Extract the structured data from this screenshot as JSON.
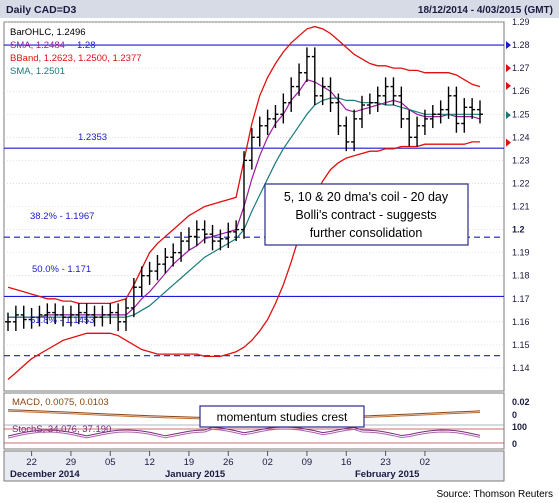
{
  "header": {
    "title": "Daily CAD=D3",
    "date_range": "18/12/2014 - 4/03/2015 (GMT)"
  },
  "legend": {
    "line1": "BarOHLC, 1.2496",
    "line2": "SMA, 1.2484",
    "line2b": "1.28",
    "line3": "BBand, 1.2623, 1.2500, 1.2377",
    "line4": "SMA, 1.2501"
  },
  "levels": {
    "support_label": "1.2353",
    "fib382": "38.2% - 1.1967",
    "fib50": "50.0% - 1.171",
    "fib618": "61.8% - 1.1453"
  },
  "annotations": {
    "main": [
      "5, 10 & 20 dma's coil - 20 day",
      "Bolli's contract - suggests",
      "further consolidation"
    ],
    "momentum": "momentum studies crest"
  },
  "indicators": {
    "macd": "MACD, 0.0075, 0.0103",
    "stoch": "StochS, 34.076, 37.190"
  },
  "x_axis": {
    "ticks": [
      "22",
      "29",
      "05",
      "12",
      "19",
      "26",
      "02",
      "09",
      "16",
      "23",
      "02"
    ],
    "months": [
      "December 2014",
      "January 2015",
      "February 2015"
    ]
  },
  "source": "Source: Thomson Reuters",
  "colors": {
    "bars": "#000000",
    "sma_fast": "#9c1a9c",
    "bband": "#e01010",
    "sma_slow": "#1a7a7a",
    "level_lines": "#1a1ad0",
    "macd": "#8b4513",
    "stoch": "#7a2a7a"
  },
  "chart_data": {
    "type": "line",
    "title": "Daily CAD=D3",
    "ylim": [
      1.13,
      1.29
    ],
    "y_ticks": [
      1.14,
      1.15,
      1.16,
      1.17,
      1.18,
      1.19,
      1.2,
      1.21,
      1.22,
      1.23,
      1.24,
      1.25,
      1.26,
      1.27,
      1.28,
      1.29
    ],
    "horizontal_levels": [
      1.2353,
      1.1967,
      1.171,
      1.1453,
      1.28
    ],
    "ohlc_close": [
      1.16,
      1.163,
      1.161,
      1.162,
      1.163,
      1.164,
      1.163,
      1.162,
      1.163,
      1.164,
      1.163,
      1.162,
      1.163,
      1.164,
      1.16,
      1.166,
      1.175,
      1.18,
      1.182,
      1.185,
      1.188,
      1.19,
      1.195,
      1.197,
      1.2,
      1.198,
      1.195,
      1.196,
      1.199,
      1.2,
      1.23,
      1.24,
      1.245,
      1.248,
      1.25,
      1.255,
      1.262,
      1.268,
      1.275,
      1.258,
      1.262,
      1.255,
      1.245,
      1.238,
      1.248,
      1.254,
      1.255,
      1.258,
      1.262,
      1.258,
      1.248,
      1.24,
      1.245,
      1.248,
      1.25,
      1.252,
      1.258,
      1.246,
      1.253,
      1.252,
      1.25
    ],
    "series": [
      {
        "name": "SMA",
        "values": [
          1.162,
          1.162,
          1.162,
          1.162,
          1.162,
          1.163,
          1.163,
          1.163,
          1.163,
          1.163,
          1.163,
          1.163,
          1.163,
          1.163,
          1.163,
          1.163,
          1.166,
          1.17,
          1.173,
          1.177,
          1.181,
          1.185,
          1.188,
          1.191,
          1.193,
          1.196,
          1.197,
          1.198,
          1.199,
          1.2,
          1.21,
          1.222,
          1.232,
          1.24,
          1.246,
          1.25,
          1.256,
          1.26,
          1.265,
          1.264,
          1.262,
          1.26,
          1.256,
          1.252,
          1.251,
          1.252,
          1.253,
          1.254,
          1.255,
          1.256,
          1.255,
          1.252,
          1.25,
          1.249,
          1.249,
          1.249,
          1.25,
          1.249,
          1.249,
          1.249,
          1.248
        ]
      },
      {
        "name": "SMA",
        "values": [
          1.162,
          1.162,
          1.162,
          1.162,
          1.162,
          1.162,
          1.162,
          1.162,
          1.162,
          1.162,
          1.162,
          1.162,
          1.162,
          1.162,
          1.162,
          1.162,
          1.163,
          1.165,
          1.167,
          1.17,
          1.173,
          1.176,
          1.179,
          1.182,
          1.185,
          1.188,
          1.19,
          1.192,
          1.194,
          1.196,
          1.2,
          1.208,
          1.215,
          1.222,
          1.229,
          1.235,
          1.24,
          1.245,
          1.25,
          1.254,
          1.256,
          1.257,
          1.257,
          1.256,
          1.256,
          1.255,
          1.255,
          1.255,
          1.254,
          1.254,
          1.253,
          1.252,
          1.251,
          1.25,
          1.25,
          1.25,
          1.25,
          1.25,
          1.25,
          1.25,
          1.25
        ]
      },
      {
        "name": "BBand",
        "values": [
          1.175,
          1.174,
          1.173,
          1.172,
          1.171,
          1.17,
          1.17,
          1.169,
          1.169,
          1.168,
          1.168,
          1.168,
          1.168,
          1.168,
          1.169,
          1.17,
          1.176,
          1.183,
          1.19,
          1.194,
          1.197,
          1.2,
          1.203,
          1.206,
          1.208,
          1.21,
          1.211,
          1.212,
          1.213,
          1.214,
          1.23,
          1.246,
          1.258,
          1.266,
          1.272,
          1.277,
          1.281,
          1.284,
          1.287,
          1.288,
          1.287,
          1.285,
          1.282,
          1.279,
          1.276,
          1.274,
          1.272,
          1.271,
          1.271,
          1.27,
          1.27,
          1.269,
          1.269,
          1.268,
          1.268,
          1.268,
          1.268,
          1.267,
          1.265,
          1.263,
          1.262
        ]
      },
      {
        "name": "BBand",
        "values": [
          1.135,
          1.138,
          1.141,
          1.144,
          1.146,
          1.148,
          1.15,
          1.152,
          1.153,
          1.154,
          1.155,
          1.155,
          1.155,
          1.155,
          1.154,
          1.152,
          1.15,
          1.148,
          1.147,
          1.146,
          1.146,
          1.146,
          1.146,
          1.146,
          1.146,
          1.145,
          1.145,
          1.145,
          1.146,
          1.147,
          1.149,
          1.152,
          1.156,
          1.161,
          1.168,
          1.176,
          1.186,
          1.197,
          1.207,
          1.215,
          1.221,
          1.226,
          1.229,
          1.231,
          1.232,
          1.233,
          1.234,
          1.234,
          1.235,
          1.235,
          1.236,
          1.236,
          1.236,
          1.237,
          1.237,
          1.237,
          1.237,
          1.237,
          1.237,
          1.238,
          1.238
        ]
      }
    ],
    "current_price_markers": [
      1.28,
      1.27,
      1.2496,
      1.2623,
      1.2377
    ]
  }
}
